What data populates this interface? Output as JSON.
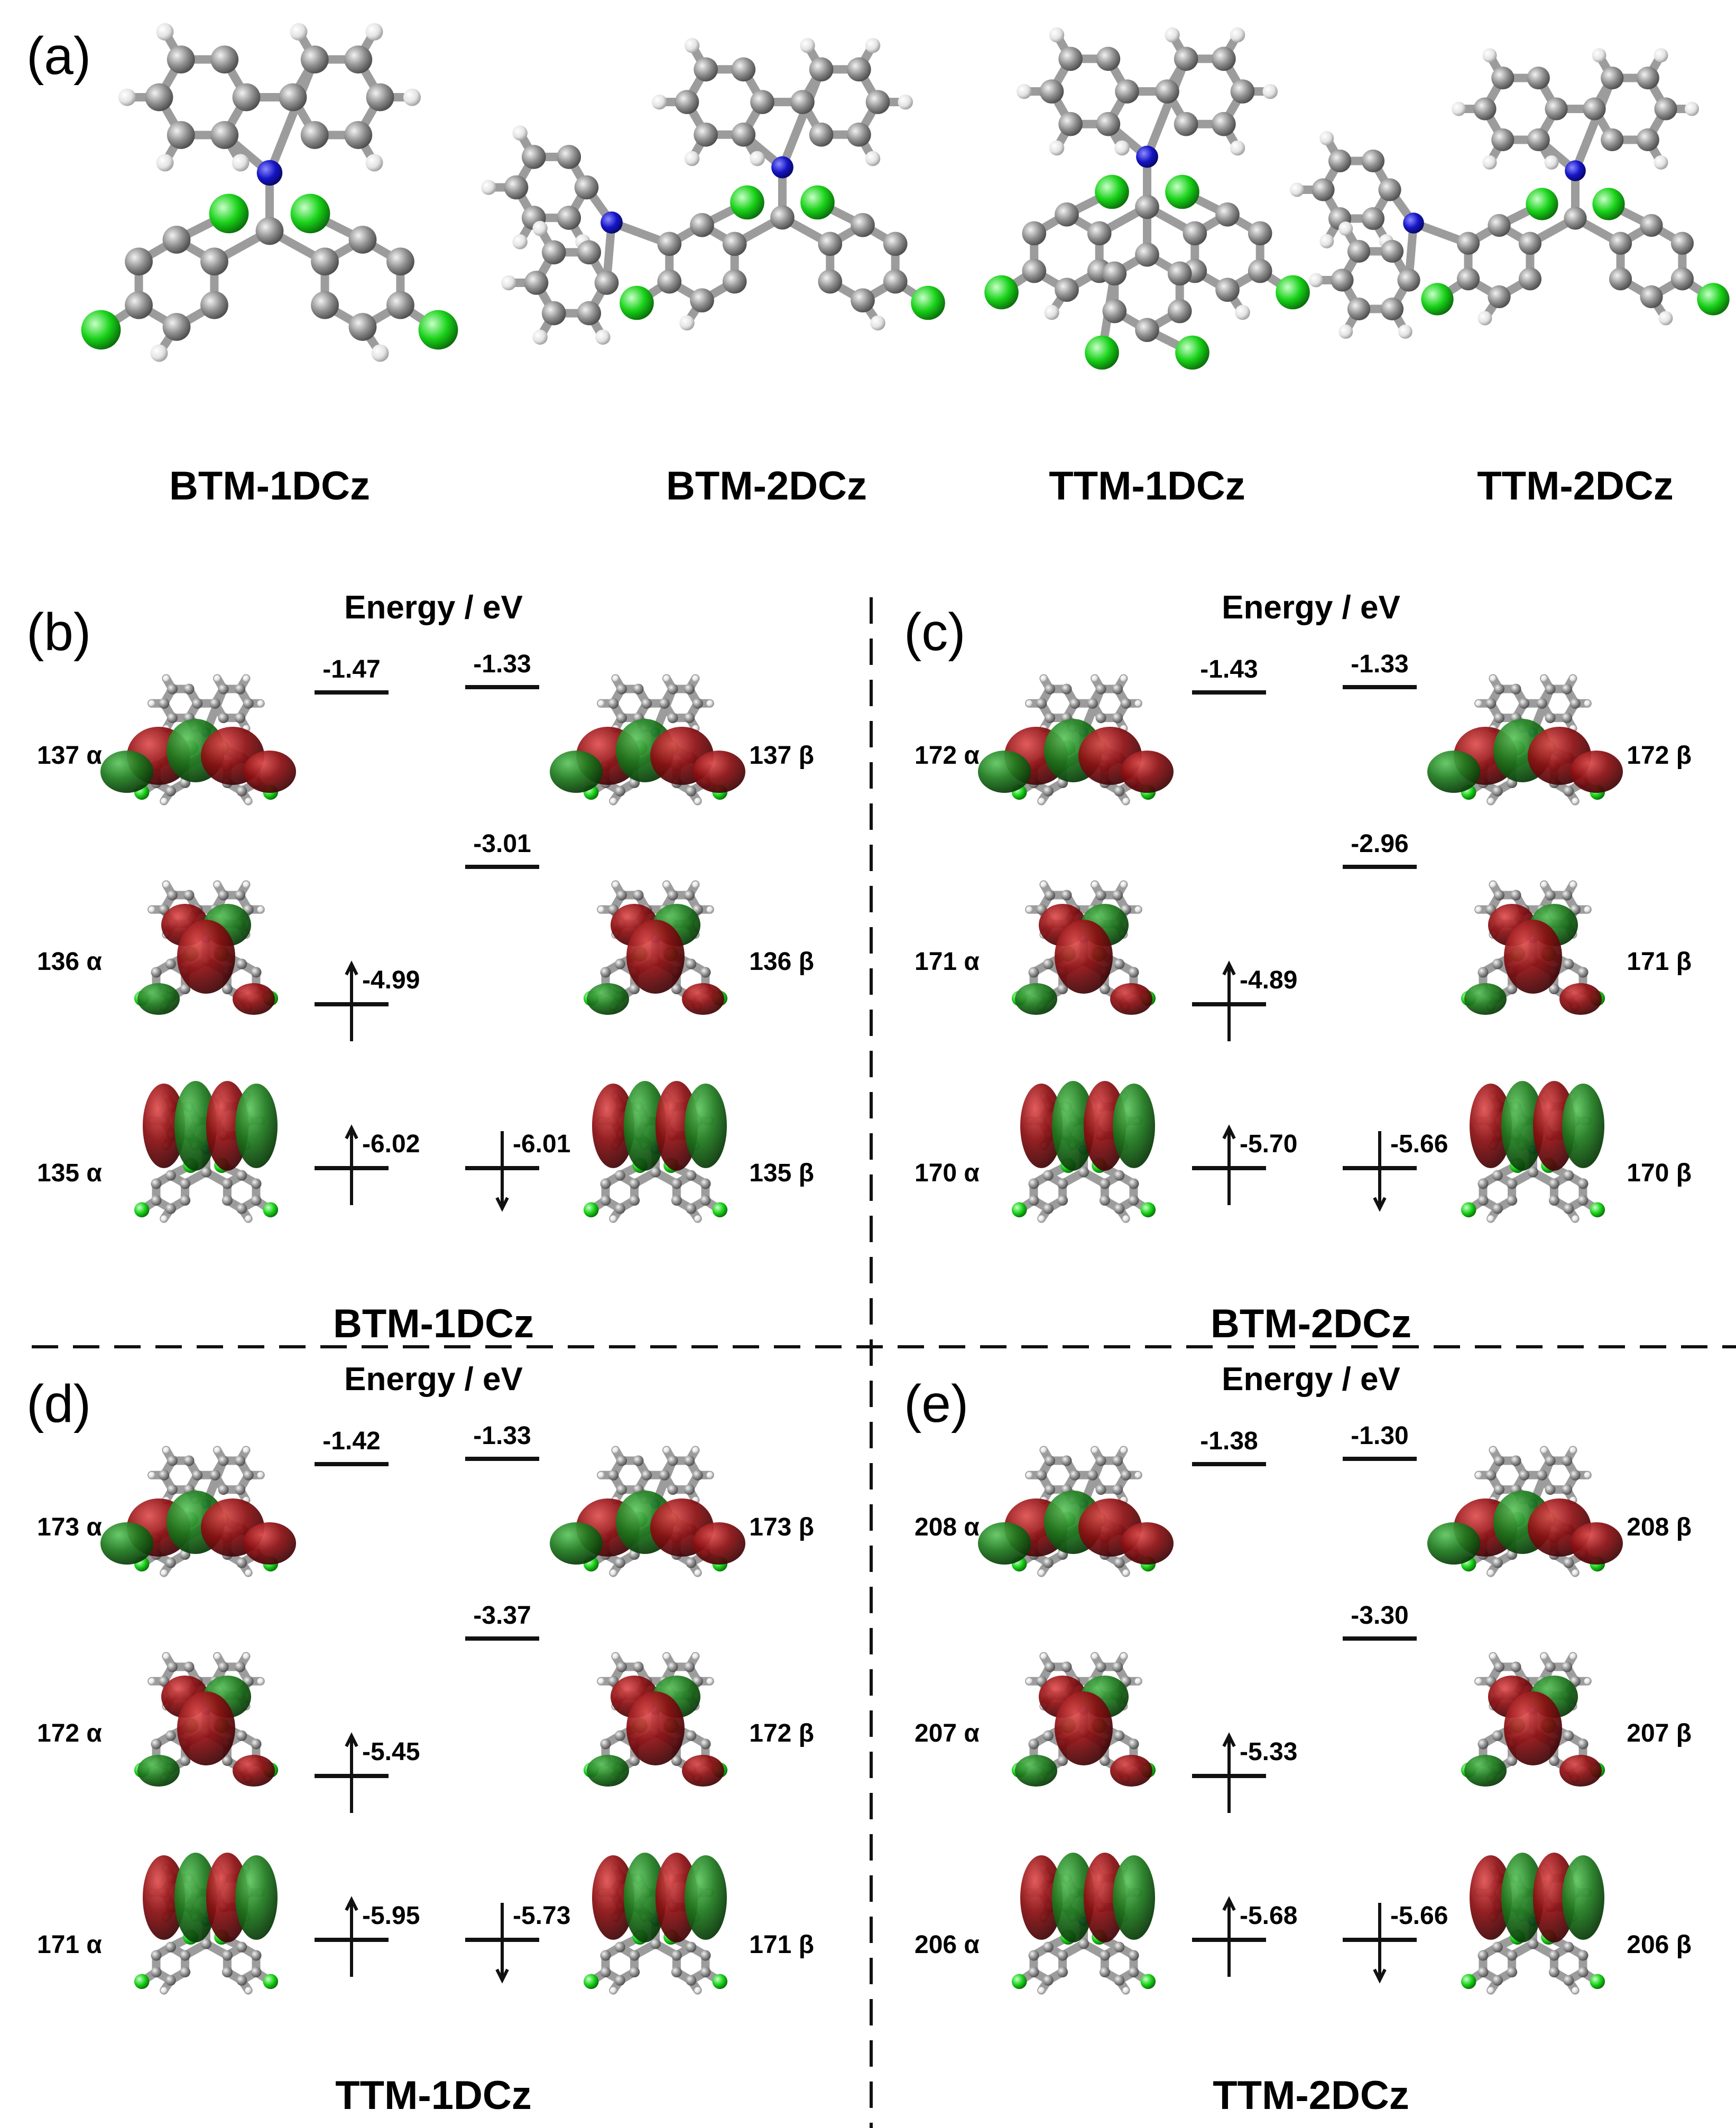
{
  "panel_a": {
    "letter": "(a)",
    "molecules": [
      "BTM-1DCz",
      "BTM-2DCz",
      "TTM-1DCz",
      "TTM-2DCz"
    ]
  },
  "energy_title": "Energy / eV",
  "panels": [
    {
      "letter": "(b)",
      "molecule": "BTM-1DCz",
      "alpha_labels": [
        "137 α",
        "136 α",
        "135 α"
      ],
      "beta_labels": [
        "137 β",
        "136 β",
        "135 β"
      ],
      "alpha_levels": [
        {
          "value": "-1.47",
          "spin": "none"
        },
        {
          "value": "-4.99",
          "spin": "up"
        },
        {
          "value": "-6.02",
          "spin": "up"
        }
      ],
      "beta_levels": [
        {
          "value": "-1.33",
          "spin": "none"
        },
        {
          "value": "-3.01",
          "spin": "none"
        },
        {
          "value": "-6.01",
          "spin": "down"
        }
      ]
    },
    {
      "letter": "(c)",
      "molecule": "BTM-2DCz",
      "alpha_labels": [
        "172 α",
        "171 α",
        "170 α"
      ],
      "beta_labels": [
        "172 β",
        "171 β",
        "170 β"
      ],
      "alpha_levels": [
        {
          "value": "-1.43",
          "spin": "none"
        },
        {
          "value": "-4.89",
          "spin": "up"
        },
        {
          "value": "-5.70",
          "spin": "up"
        }
      ],
      "beta_levels": [
        {
          "value": "-1.33",
          "spin": "none"
        },
        {
          "value": "-2.96",
          "spin": "none"
        },
        {
          "value": "-5.66",
          "spin": "down"
        }
      ]
    },
    {
      "letter": "(d)",
      "molecule": "TTM-1DCz",
      "alpha_labels": [
        "173 α",
        "172 α",
        "171 α"
      ],
      "beta_labels": [
        "173 β",
        "172 β",
        "171 β"
      ],
      "alpha_levels": [
        {
          "value": "-1.42",
          "spin": "none"
        },
        {
          "value": "-5.45",
          "spin": "up"
        },
        {
          "value": "-5.95",
          "spin": "up"
        }
      ],
      "beta_levels": [
        {
          "value": "-1.33",
          "spin": "none"
        },
        {
          "value": "-3.37",
          "spin": "none"
        },
        {
          "value": "-5.73",
          "spin": "down"
        }
      ]
    },
    {
      "letter": "(e)",
      "molecule": "TTM-2DCz",
      "alpha_labels": [
        "208 α",
        "207 α",
        "206 α"
      ],
      "beta_labels": [
        "208 β",
        "207 β",
        "206 β"
      ],
      "alpha_levels": [
        {
          "value": "-1.38",
          "spin": "none"
        },
        {
          "value": "-5.33",
          "spin": "up"
        },
        {
          "value": "-5.68",
          "spin": "up"
        }
      ],
      "beta_levels": [
        {
          "value": "-1.30",
          "spin": "none"
        },
        {
          "value": "-3.30",
          "spin": "none"
        },
        {
          "value": "-5.66",
          "spin": "down"
        }
      ]
    }
  ],
  "colors": {
    "carbon": "#8f8f8f",
    "hydrogen": "#e8e8e8",
    "nitrogen": "#1515c8",
    "chlorine": "#19d219",
    "orbital_positive": "#8b0f12",
    "orbital_negative": "#1e7a1e"
  }
}
